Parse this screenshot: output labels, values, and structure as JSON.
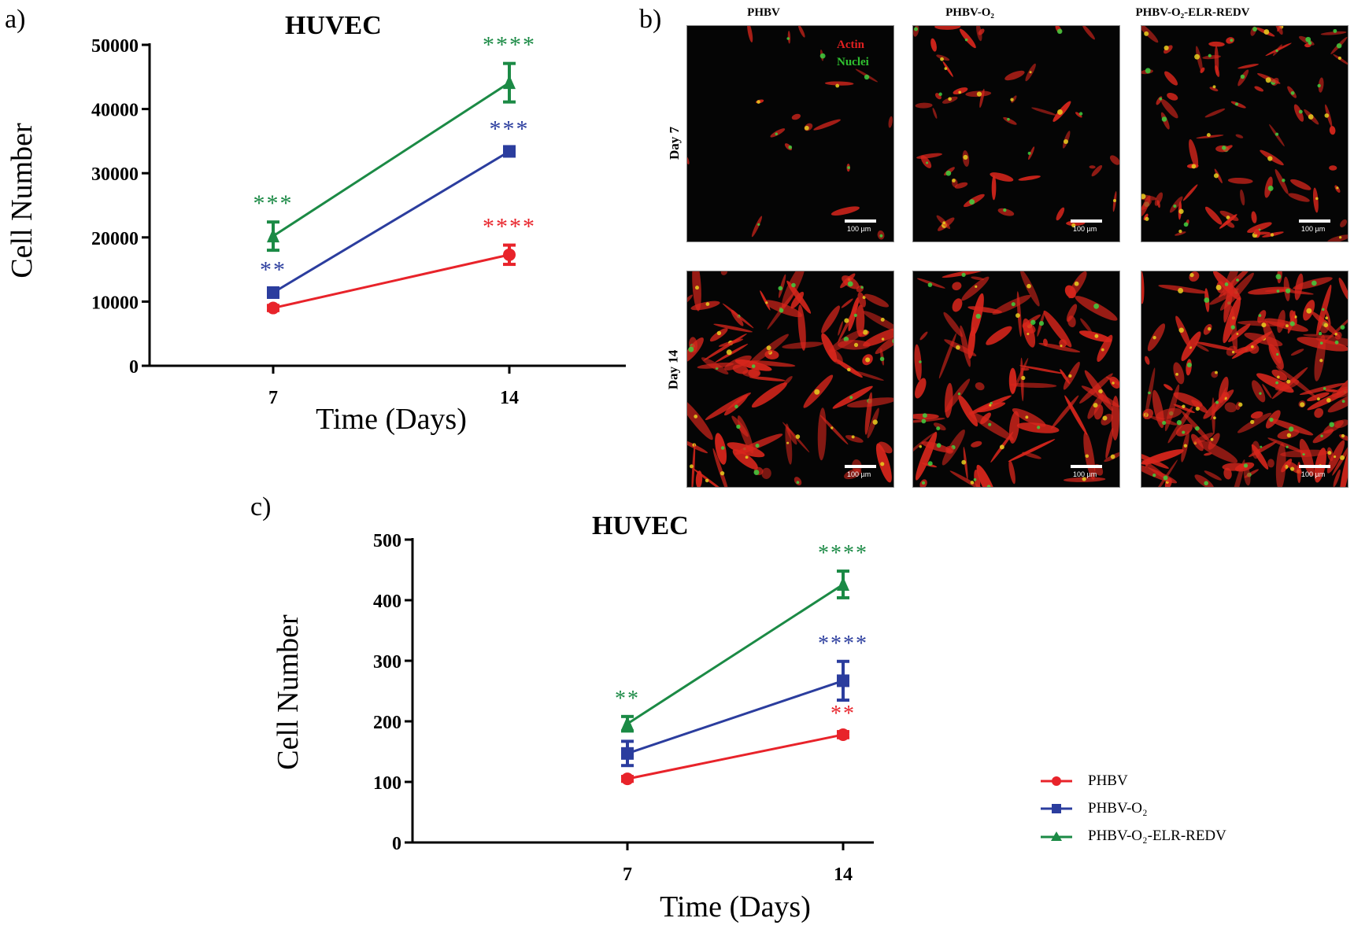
{
  "panels": {
    "a": {
      "label": "a)",
      "title": "HUVEC"
    },
    "b": {
      "label": "b)",
      "columns": [
        "PHBV",
        "PHBV-O₂",
        "PHBV-O₂-ELR-REDV"
      ],
      "rows": [
        "Day 7",
        "Day 14"
      ],
      "stain_legend": {
        "actin": "Actin",
        "nuclei": "Nuclei"
      },
      "scale_bar": "100 µm"
    },
    "c": {
      "label": "c)",
      "title": "HUVEC"
    }
  },
  "legend": [
    {
      "name": "PHBV",
      "color": "#e8232a",
      "marker": "circle"
    },
    {
      "name": "PHBV-O₂",
      "color": "#2b3d9e",
      "marker": "square"
    },
    {
      "name": "PHBV-O₂-ELR-REDV",
      "color": "#1b8a45",
      "marker": "triangle"
    }
  ],
  "colors": {
    "red": "#e8232a",
    "blue": "#2b3d9e",
    "green": "#1b8a45"
  },
  "chart_data": [
    {
      "type": "line",
      "title": "HUVEC",
      "xlabel": "Time (Days)",
      "ylabel": "Cell Number",
      "categories": [
        "7",
        "14"
      ],
      "ylim": [
        0,
        50000
      ],
      "yticks": [
        0,
        10000,
        20000,
        30000,
        40000,
        50000
      ],
      "series": [
        {
          "name": "PHBV",
          "values": [
            9000,
            17300
          ],
          "errors": [
            400,
            1500
          ],
          "significance": [
            "",
            "****"
          ]
        },
        {
          "name": "PHBV-O₂",
          "values": [
            11400,
            33400
          ],
          "errors": [
            700,
            600
          ],
          "significance": [
            "**",
            "***"
          ]
        },
        {
          "name": "PHBV-O₂-ELR-REDV",
          "values": [
            20200,
            44100
          ],
          "errors": [
            2200,
            3000
          ],
          "significance": [
            "***",
            "****"
          ]
        }
      ]
    },
    {
      "type": "line",
      "title": "HUVEC",
      "xlabel": "Time (Days)",
      "ylabel": "Cell Number",
      "categories": [
        "7",
        "14"
      ],
      "ylim": [
        0,
        500
      ],
      "yticks": [
        0,
        100,
        200,
        300,
        400,
        500
      ],
      "series": [
        {
          "name": "PHBV",
          "values": [
            105,
            178
          ],
          "errors": [
            4,
            5
          ],
          "significance": [
            "",
            "**"
          ]
        },
        {
          "name": "PHBV-O₂",
          "values": [
            147,
            267
          ],
          "errors": [
            20,
            32
          ],
          "significance": [
            "",
            "****"
          ]
        },
        {
          "name": "PHBV-O₂-ELR-REDV",
          "values": [
            196,
            426
          ],
          "errors": [
            12,
            22
          ],
          "significance": [
            "**",
            "****"
          ]
        }
      ]
    }
  ]
}
